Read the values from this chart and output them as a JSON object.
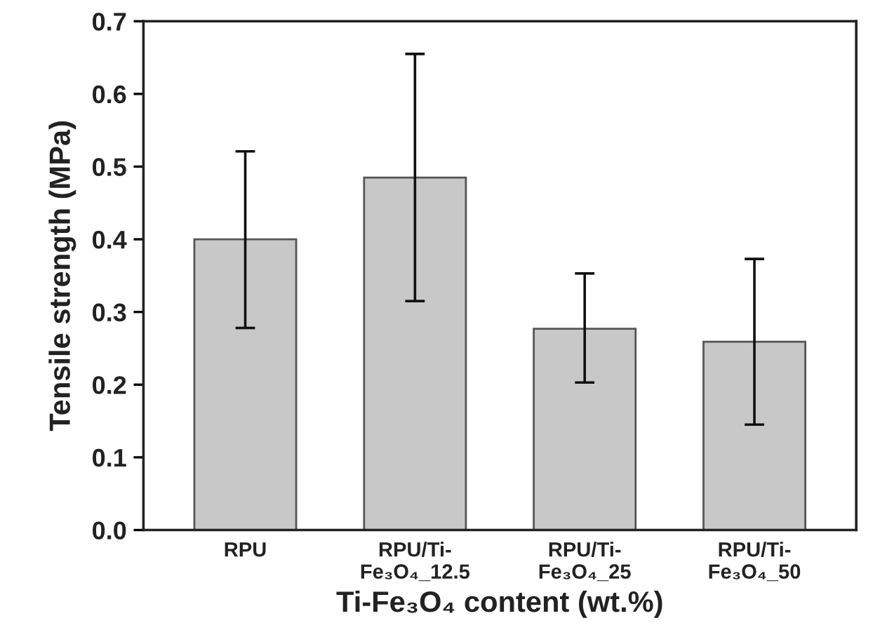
{
  "chart_data": {
    "type": "bar",
    "xlabel": "Ti-Fe₃O₄ content (wt.%)",
    "ylabel": "Tensile strength (MPa)",
    "categories": [
      "RPU",
      "RPU/Ti-\nFe₃O₄_12.5",
      "RPU/Ti-\nFe₃O₄_25",
      "RPU/Ti-\nFe₃O₄_50"
    ],
    "values": [
      0.4,
      0.485,
      0.277,
      0.259
    ],
    "errors": [
      [
        0.278,
        0.521
      ],
      [
        0.315,
        0.655
      ],
      [
        0.203,
        0.353
      ],
      [
        0.145,
        0.373
      ]
    ],
    "color": "#c8c8c8",
    "ylim": [
      0,
      0.7
    ],
    "yticks": [
      {
        "value": 0,
        "label": "0.0"
      },
      0.1,
      0.2,
      0.3,
      0.4,
      0.5,
      0.6,
      0.7
    ],
    "grid": false,
    "legend": false
  }
}
